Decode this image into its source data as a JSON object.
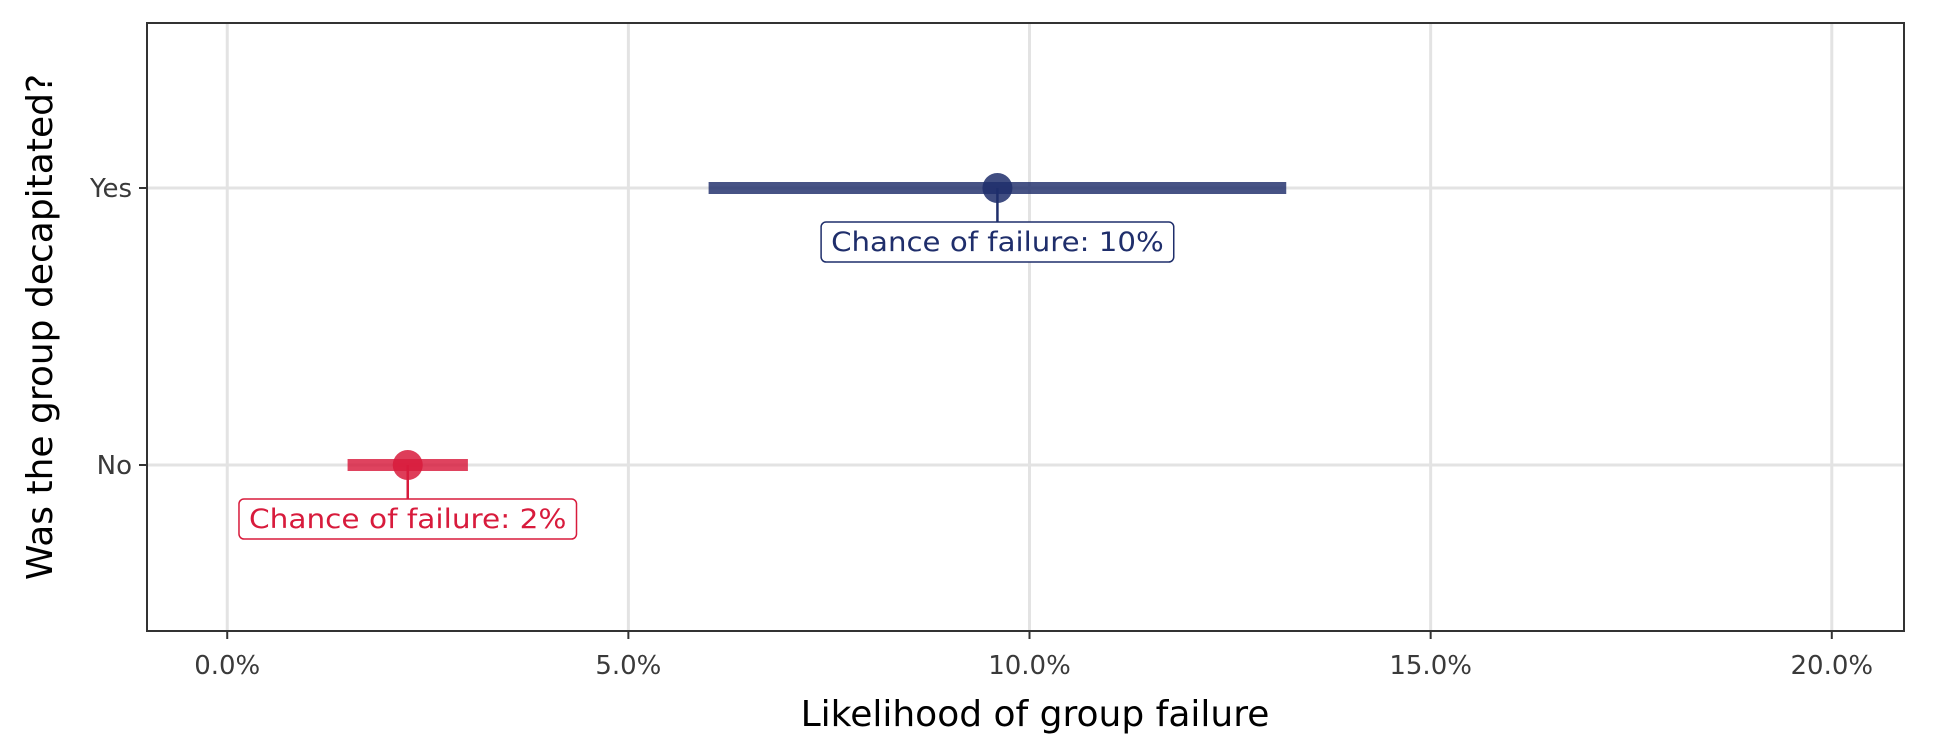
{
  "chart_data": {
    "type": "scatter",
    "title": "",
    "xlabel": "Likelihood of group failure",
    "ylabel": "Was the group decapitated?",
    "xlim": [
      -0.01,
      0.209
    ],
    "x_ticks": [
      0.0,
      0.05,
      0.1,
      0.15,
      0.2
    ],
    "x_tick_labels": [
      "0.0%",
      "5.0%",
      "10.0%",
      "15.0%",
      "20.0%"
    ],
    "categories": [
      "No",
      "Yes"
    ],
    "grid": true,
    "legend": "none",
    "points": [
      {
        "category": "Yes",
        "estimate": 0.096,
        "lower": 0.06,
        "upper": 0.132,
        "label": "Chance of failure: 10%",
        "color": "#1f2e6b"
      },
      {
        "category": "No",
        "estimate": 0.0225,
        "lower": 0.015,
        "upper": 0.03,
        "label": "Chance of failure: 2%",
        "color": "#d81b3c"
      }
    ]
  }
}
